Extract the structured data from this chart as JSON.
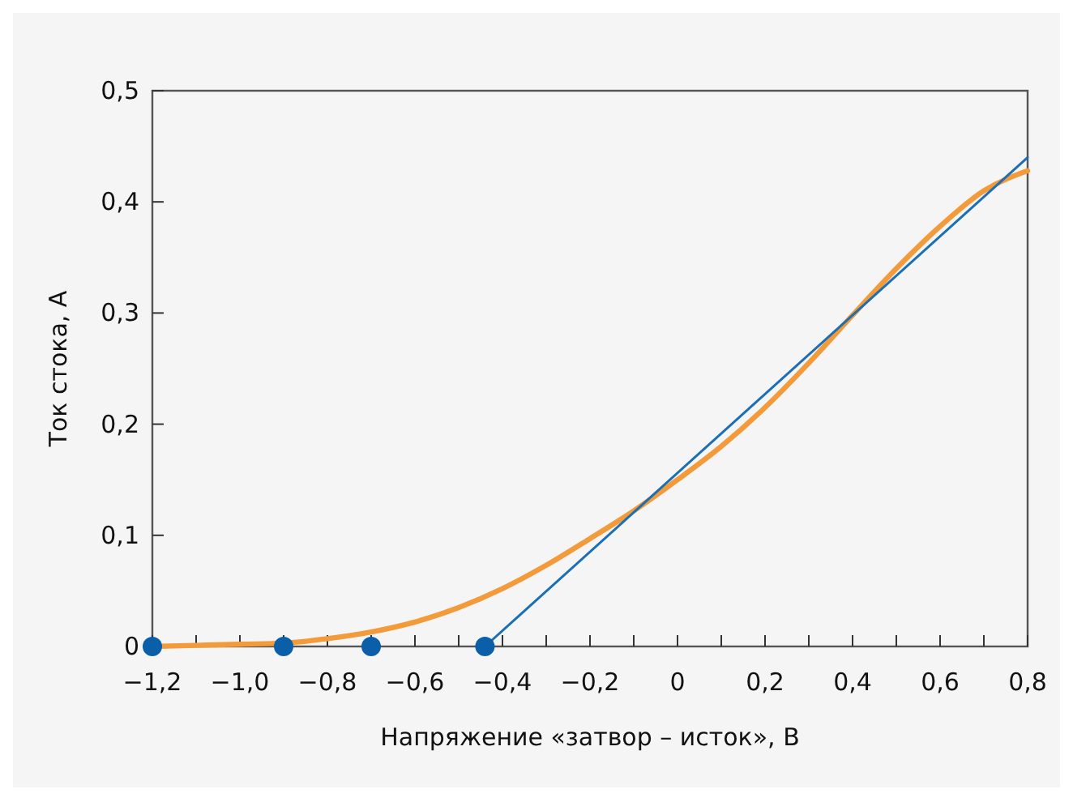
{
  "chart_data": {
    "type": "line",
    "xlabel": "Напряжение «затвор – исток», В",
    "ylabel": "Ток стока, А",
    "xlim": [
      -1.2,
      0.8
    ],
    "ylim": [
      0,
      0.5
    ],
    "xticks": [
      {
        "value": -1.2,
        "label": "−1,2"
      },
      {
        "value": -1.1,
        "label": null
      },
      {
        "value": -1.0,
        "label": "−1,0"
      },
      {
        "value": -0.9,
        "label": null
      },
      {
        "value": -0.8,
        "label": "−0,8"
      },
      {
        "value": -0.7,
        "label": null
      },
      {
        "value": -0.6,
        "label": "−0,6"
      },
      {
        "value": -0.5,
        "label": null
      },
      {
        "value": -0.4,
        "label": "−0,4"
      },
      {
        "value": -0.3,
        "label": null
      },
      {
        "value": -0.2,
        "label": "−0,2"
      },
      {
        "value": -0.1,
        "label": null
      },
      0,
      {
        "value": 0.1,
        "label": null
      },
      {
        "value": 0.2,
        "label": "0,2"
      },
      {
        "value": 0.3,
        "label": null
      },
      {
        "value": 0.4,
        "label": "0,4"
      },
      {
        "value": 0.5,
        "label": null
      },
      {
        "value": 0.6,
        "label": "0,6"
      },
      {
        "value": 0.7,
        "label": null
      },
      {
        "value": 0.8,
        "label": "0,8"
      }
    ],
    "yticks": [
      0,
      {
        "value": 0.1,
        "label": "0,1"
      },
      {
        "value": 0.2,
        "label": "0,2"
      },
      {
        "value": 0.3,
        "label": "0,3"
      },
      {
        "value": 0.4,
        "label": "0,4"
      },
      {
        "value": 0.5,
        "label": "0,5"
      }
    ],
    "grid": false,
    "series": [
      {
        "color": "#f39a3b",
        "x": [
          -1.2,
          -1.0,
          -0.9,
          -0.8,
          -0.7,
          -0.6,
          -0.5,
          -0.4,
          -0.3,
          -0.2,
          -0.1,
          0,
          0.1,
          0.2,
          0.3,
          0.4,
          0.5,
          0.6,
          0.7,
          0.8
        ],
        "values": [
          0,
          0.002,
          0.003,
          0.007,
          0.013,
          0.022,
          0.035,
          0.052,
          0.073,
          0.097,
          0.122,
          0.15,
          0.18,
          0.215,
          0.255,
          0.298,
          0.34,
          0.378,
          0.41,
          0.428
        ]
      },
      {
        "color": "#1a6fb5",
        "x": [
          -0.44,
          0.8
        ],
        "values": [
          0,
          0.44
        ]
      },
      {
        "type": "scatter",
        "marker": "circle",
        "color": "#0b5ea8",
        "x": [
          -1.2,
          -0.9,
          -0.7,
          -0.44
        ],
        "values": [
          0,
          0,
          0,
          0
        ]
      }
    ]
  }
}
